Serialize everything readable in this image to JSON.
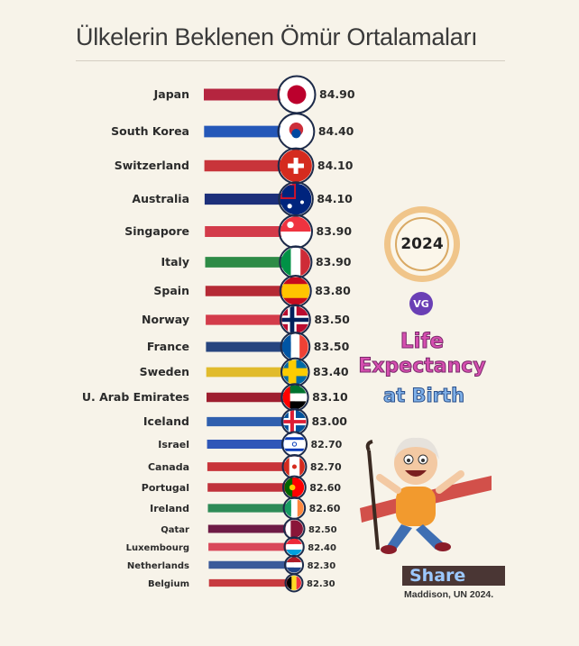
{
  "page": {
    "title": "Ülkelerin Beklenen Ömür Ortalamaları",
    "year": "2024",
    "badge": "VG",
    "headline": [
      "Life",
      "Expectancy",
      "at Birth"
    ],
    "share": "Share",
    "source": "Maddison, UN 2024."
  },
  "colors": {
    "background": "#f7f3e9",
    "headline_pink": "#d64fb0",
    "headline_blue": "#7fb0e8"
  },
  "chart_data": {
    "type": "bar",
    "orientation": "horizontal",
    "categories": [
      "Japan",
      "South Korea",
      "Switzerland",
      "Australia",
      "Singapore",
      "Italy",
      "Spain",
      "Norway",
      "France",
      "Sweden",
      "U. Arab Emirates",
      "Iceland",
      "Israel",
      "Canada",
      "Portugal",
      "Ireland",
      "Qatar",
      "Luxembourg",
      "Netherlands",
      "Belgium"
    ],
    "value_labels": [
      "84.90",
      "84.40",
      "84.10",
      "84.10",
      "83.90",
      "83.90",
      "83.80",
      "83.50",
      "83.50",
      "83.40",
      "83.10",
      "83.00",
      "82.70",
      "82.70",
      "82.60",
      "82.60",
      "82.50",
      "82.40",
      "82.30",
      "82.30"
    ],
    "values": [
      84.9,
      84.4,
      84.1,
      84.1,
      83.9,
      83.9,
      83.8,
      83.5,
      83.5,
      83.4,
      83.1,
      83.0,
      82.7,
      82.7,
      82.6,
      82.6,
      82.5,
      82.4,
      82.3,
      82.3
    ],
    "bar_colors": [
      "#b5253f",
      "#2457b8",
      "#c8343a",
      "#1c2f7a",
      "#d33b4a",
      "#2e8b46",
      "#b52a35",
      "#d33b4a",
      "#27457f",
      "#e1bb2c",
      "#9e1e2f",
      "#2f5fae",
      "#2f57b8",
      "#c8343a",
      "#c0323b",
      "#2e8b57",
      "#6e1a45",
      "#d9485a",
      "#3a5a9a",
      "#c73a3f"
    ],
    "flag_icons": [
      "japan-flag-icon",
      "south-korea-flag-icon",
      "switzerland-flag-icon",
      "australia-flag-icon",
      "singapore-flag-icon",
      "italy-flag-icon",
      "spain-flag-icon",
      "norway-flag-icon",
      "france-flag-icon",
      "sweden-flag-icon",
      "uae-flag-icon",
      "iceland-flag-icon",
      "israel-flag-icon",
      "canada-flag-icon",
      "portugal-flag-icon",
      "ireland-flag-icon",
      "qatar-flag-icon",
      "luxembourg-flag-icon",
      "netherlands-flag-icon",
      "belgium-flag-icon"
    ]
  }
}
